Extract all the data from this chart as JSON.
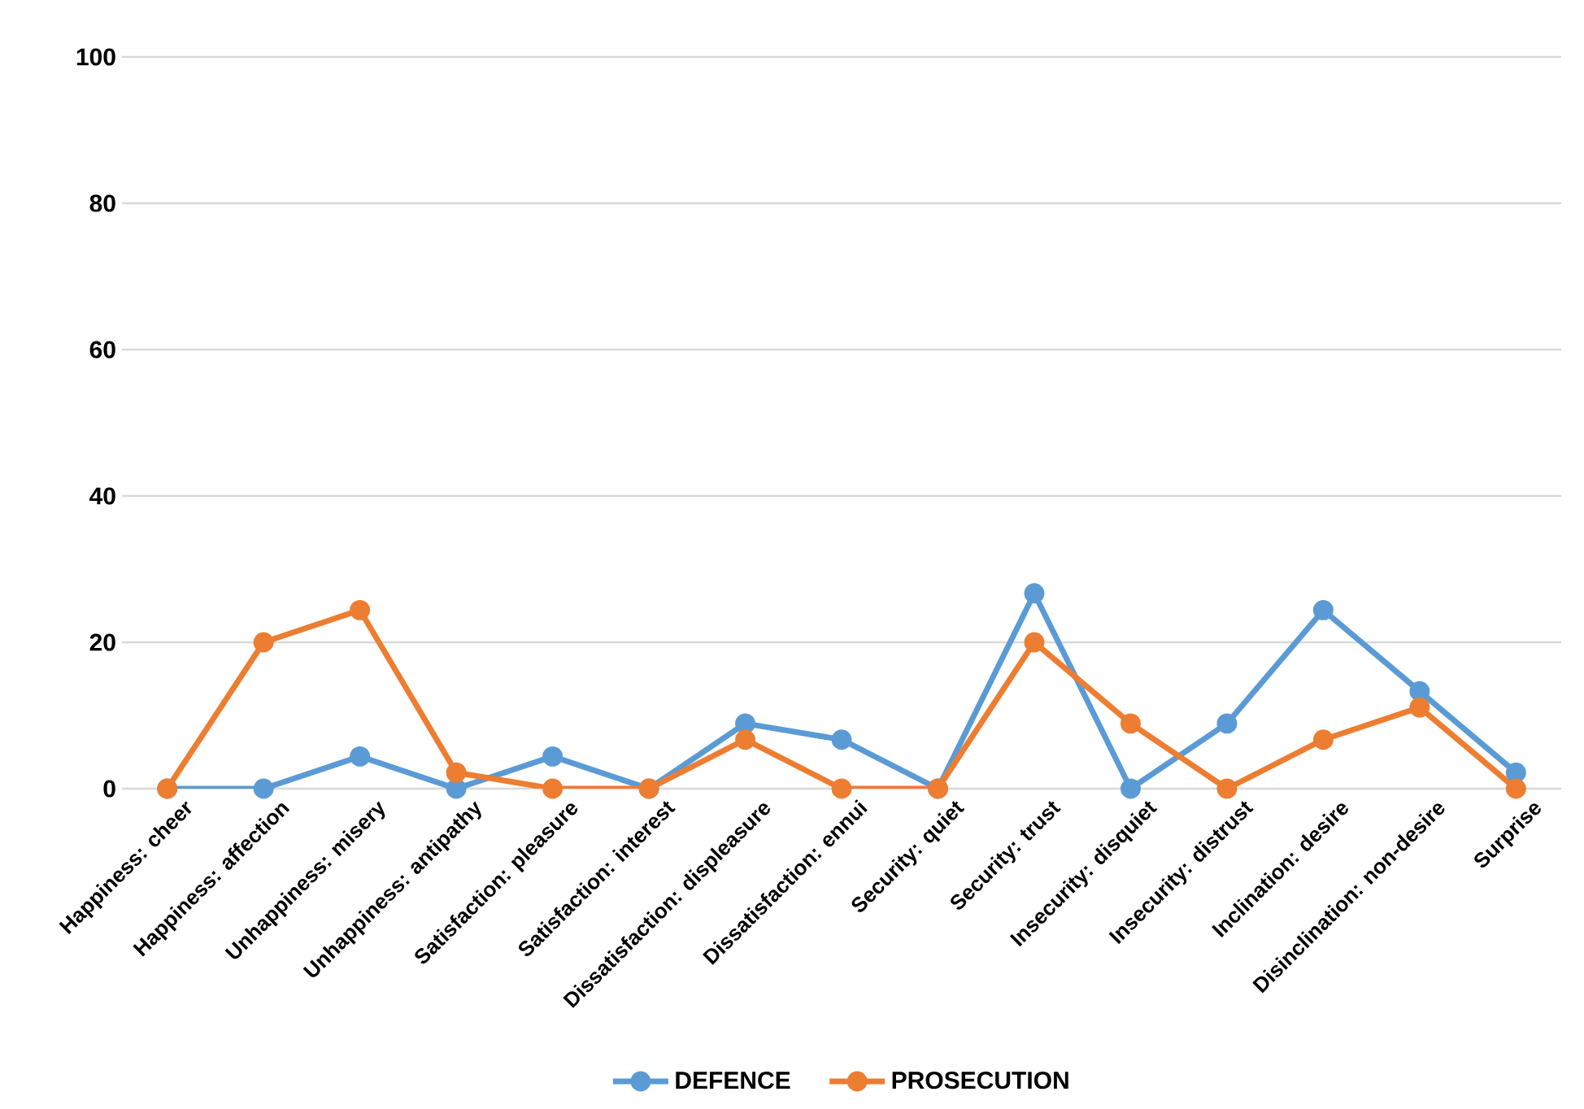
{
  "chart_data": {
    "type": "line",
    "categories": [
      "Happiness: cheer",
      "Happiness: affection",
      "Unhappiness: misery",
      "Unhappiness: antipathy",
      "Satisfaction: pleasure",
      "Satisfaction: interest",
      "Dissatisfaction: displeasure",
      "Dissatisfaction: ennui",
      "Security: quiet",
      "Security: trust",
      "Insecurity: disquiet",
      "Insecurity: distrust",
      "Inclination: desire",
      "Disinclination: non-desire",
      "Surprise"
    ],
    "series": [
      {
        "name": "DEFENCE",
        "color": "#5b9bd5",
        "values": [
          0,
          0,
          4.4,
          0,
          4.4,
          0,
          8.9,
          6.7,
          0,
          26.7,
          0,
          8.9,
          24.4,
          13.3,
          2.2
        ]
      },
      {
        "name": "PROSECUTION",
        "color": "#ed7d31",
        "values": [
          0,
          20,
          24.4,
          2.2,
          0,
          0,
          6.7,
          0,
          0,
          20,
          8.9,
          0,
          6.7,
          11.1,
          0
        ]
      }
    ],
    "ylim": [
      0,
      100
    ],
    "yticks": [
      0,
      20,
      40,
      60,
      80,
      100
    ],
    "grid": "y",
    "legend": "bottom",
    "marker": "circle",
    "line_style": "solid"
  }
}
